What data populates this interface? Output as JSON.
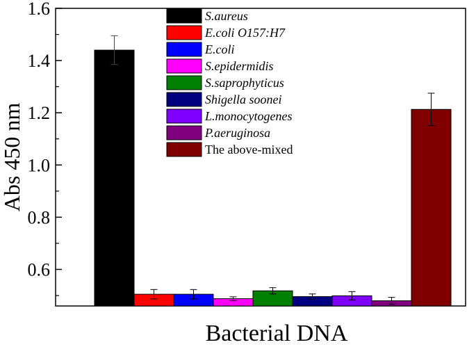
{
  "chart_data": {
    "type": "bar",
    "xlabel": "Bacterial DNA",
    "ylabel": "Abs 450 nm",
    "ylim": [
      0.46,
      1.6
    ],
    "yticks": [
      "0.6",
      "0.8",
      "1.0",
      "1.2",
      "1.4",
      "1.6"
    ],
    "legend_position": "top-center",
    "grid": false,
    "series": [
      {
        "name": "S.aureus",
        "italic": true,
        "value": 1.44,
        "error": 0.055,
        "color": "#000000"
      },
      {
        "name": "E.coli O157:H7",
        "italic": true,
        "value": 0.505,
        "error": 0.018,
        "color": "#ff0000"
      },
      {
        "name": "E.coli",
        "italic": true,
        "value": 0.505,
        "error": 0.018,
        "color": "#0000ff"
      },
      {
        "name": "S.epidermidis",
        "italic": true,
        "value": 0.488,
        "error": 0.007,
        "color": "#ff00ff"
      },
      {
        "name": "S.saprophyticus",
        "italic": true,
        "value": 0.518,
        "error": 0.012,
        "color": "#008000"
      },
      {
        "name": "Shigella soonei",
        "italic": true,
        "value": 0.496,
        "error": 0.01,
        "color": "#000080"
      },
      {
        "name": "L.monocytogenes",
        "italic": true,
        "value": 0.499,
        "error": 0.016,
        "color": "#8000ff"
      },
      {
        "name": "P.aeruginosa",
        "italic": true,
        "value": 0.48,
        "error": 0.013,
        "color": "#800080"
      },
      {
        "name": "The above-mixed",
        "italic": false,
        "value": 1.213,
        "error": 0.062,
        "color": "#800000"
      }
    ]
  }
}
